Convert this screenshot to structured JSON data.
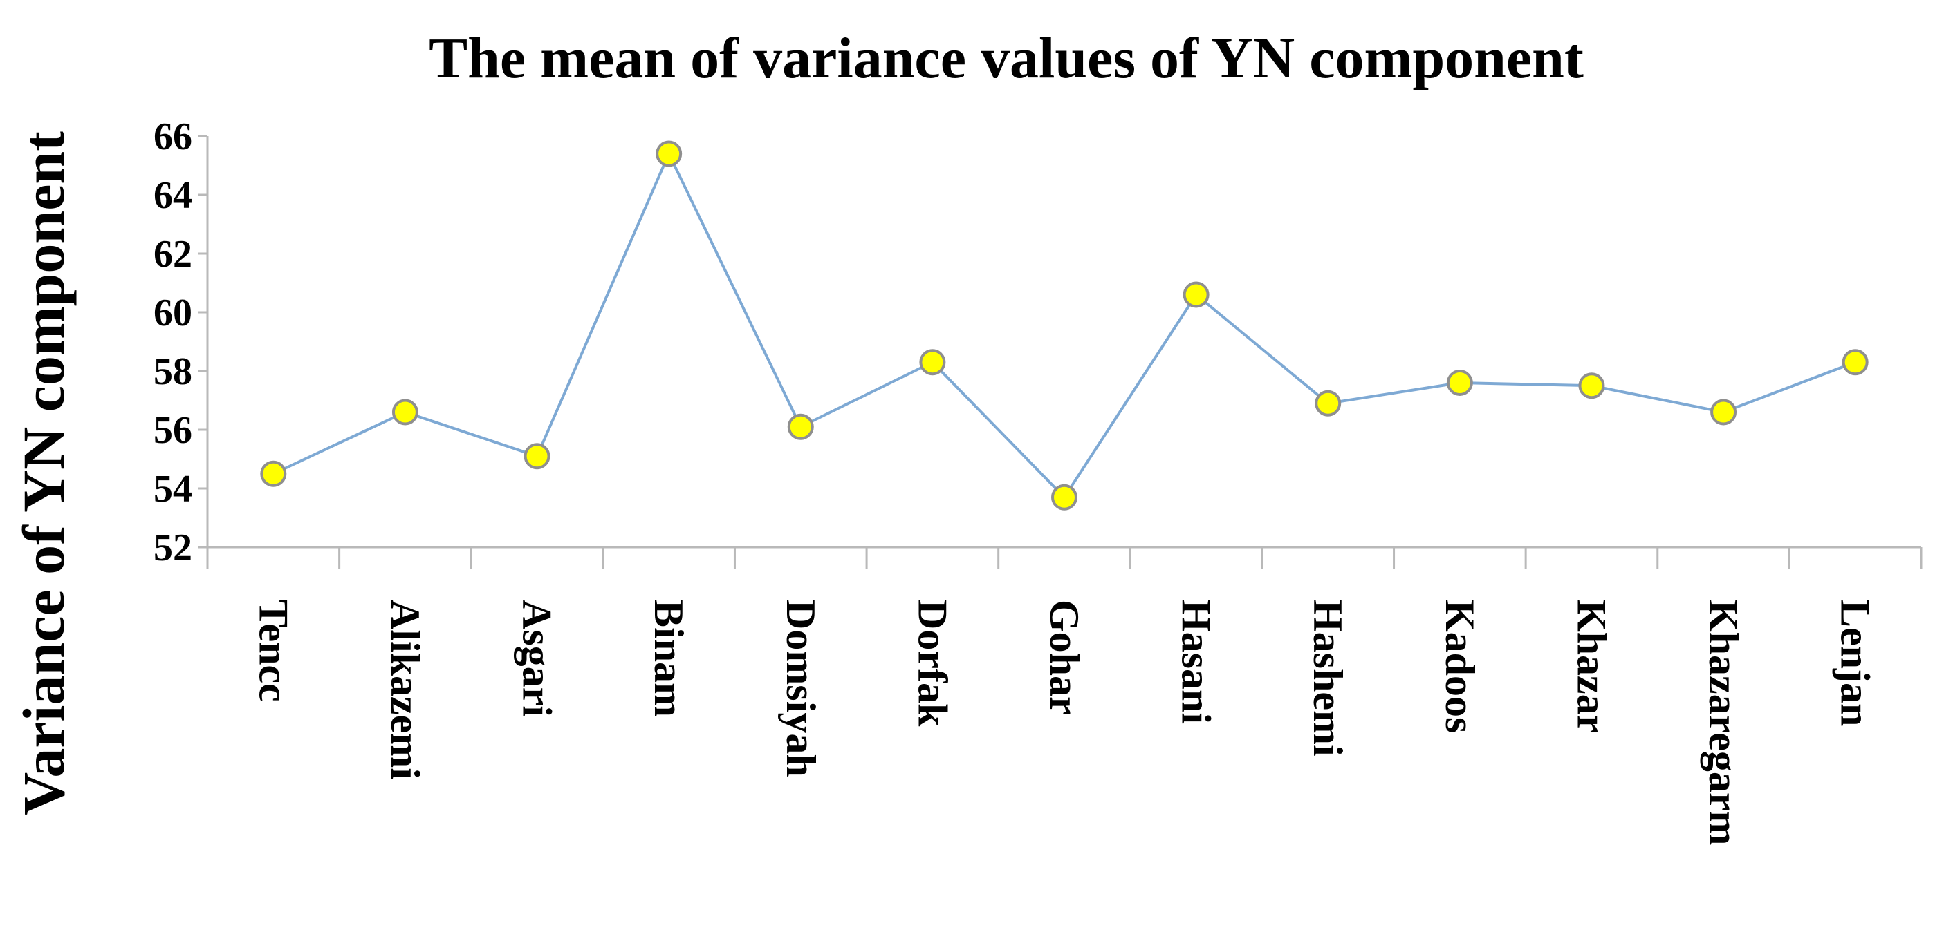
{
  "chart_data": {
    "type": "line",
    "title": "The mean of variance values of YN component",
    "xlabel": "",
    "ylabel": "Variance of YN component",
    "categories": [
      "Tencc",
      "Alikazemi",
      "Asgari",
      "Binam",
      "Domsiyah",
      "Dorfak",
      "Gohar",
      "Hasani",
      "Hashemi",
      "Kadoos",
      "Khazar",
      "Khazaregarm",
      "Lenjan"
    ],
    "series": [
      {
        "values": [
          54.5,
          56.6,
          55.1,
          65.4,
          56.1,
          58.3,
          53.7,
          60.6,
          56.9,
          57.6,
          57.5,
          56.6,
          58.3
        ]
      }
    ],
    "ylim": [
      52,
      66
    ],
    "yticks": [
      "52",
      "54",
      "56",
      "58",
      "60",
      "62",
      "64",
      "66"
    ],
    "ytick_values": [
      52,
      54,
      56,
      58,
      60,
      62,
      64,
      66
    ],
    "grid": false,
    "legend": "none",
    "colors": {
      "line": "#7ea9d4",
      "marker_fill": "#ffff00",
      "marker_stroke": "#8f8f8f",
      "axis": "#b9b9b9",
      "text": "#000000"
    }
  }
}
